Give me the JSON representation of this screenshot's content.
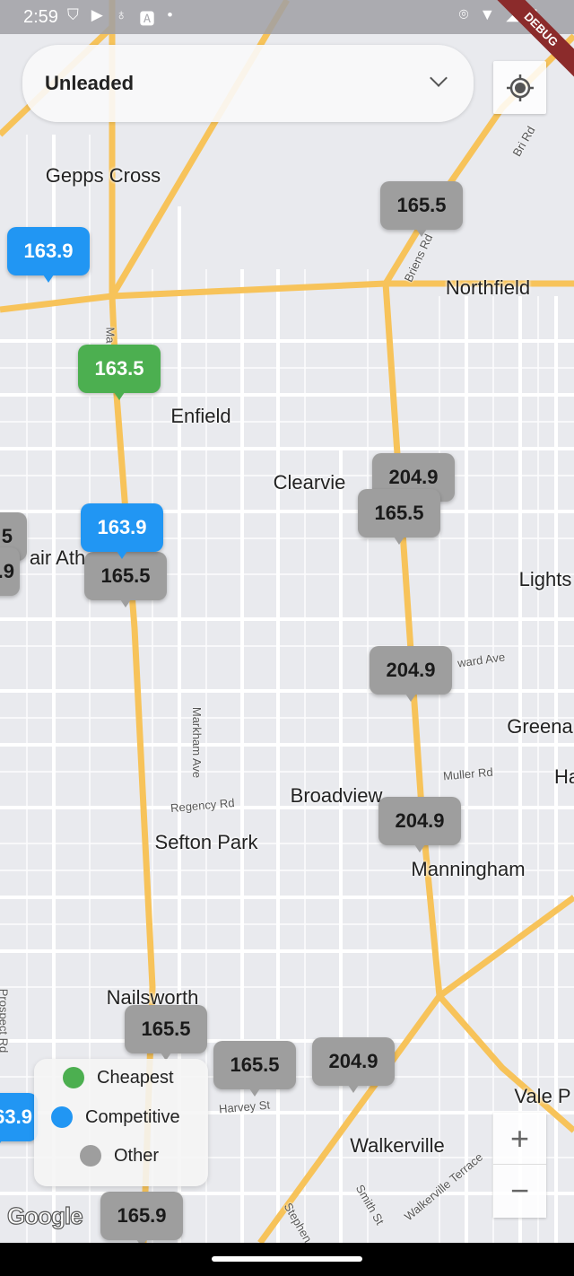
{
  "status_bar": {
    "time": "2:59",
    "left_icons": [
      "shield-icon",
      "play-shield-icon",
      "accessibility-icon",
      "font-icon",
      "dot-icon"
    ],
    "right_icons": [
      "location-icon",
      "wifi-icon",
      "signal-icon",
      "battery-icon"
    ]
  },
  "debug_banner": "DEBUG",
  "fuel_select": {
    "value": "Unleaded"
  },
  "places": [
    {
      "name": "Gepps Cross"
    },
    {
      "name": "Northfield"
    },
    {
      "name": "Enfield"
    },
    {
      "name": "Clearvie"
    },
    {
      "name": "air Ath"
    },
    {
      "name": "Lights"
    },
    {
      "name": "Greena"
    },
    {
      "name": "Ha"
    },
    {
      "name": "Broadview"
    },
    {
      "name": "Sefton Park"
    },
    {
      "name": "Manningham"
    },
    {
      "name": "Nailsworth"
    },
    {
      "name": "Vale P"
    },
    {
      "name": "Walkerville"
    }
  ],
  "streets": [
    {
      "name": "Briens Rd"
    },
    {
      "name": "Bri Rd"
    },
    {
      "name": "Ma"
    },
    {
      "name": "ward Ave"
    },
    {
      "name": "Markham Ave"
    },
    {
      "name": "Muller Rd"
    },
    {
      "name": "Regency Rd"
    },
    {
      "name": "Prospect Rd"
    },
    {
      "name": "Harvey St"
    },
    {
      "name": "Smith St"
    },
    {
      "name": "Walkerville Terrace"
    },
    {
      "name": "Stephen"
    }
  ],
  "markers": [
    {
      "price": "165.5",
      "category": "other"
    },
    {
      "price": "163.9",
      "category": "competitive"
    },
    {
      "price": "163.5",
      "category": "cheapest"
    },
    {
      "price": "204.9",
      "category": "other"
    },
    {
      "price": "165.5",
      "category": "other"
    },
    {
      "price": "5",
      "category": "other"
    },
    {
      "price": ".9",
      "category": "other"
    },
    {
      "price": "163.9",
      "category": "competitive"
    },
    {
      "price": "165.5",
      "category": "other"
    },
    {
      "price": "204.9",
      "category": "other"
    },
    {
      "price": "204.9",
      "category": "other"
    },
    {
      "price": "165.5",
      "category": "other"
    },
    {
      "price": "165.5",
      "category": "other"
    },
    {
      "price": "204.9",
      "category": "other"
    },
    {
      "price": "63.9",
      "category": "competitive"
    },
    {
      "price": "165.9",
      "category": "other"
    }
  ],
  "legend": {
    "items": [
      {
        "label": "Cheapest",
        "color": "#4caf50"
      },
      {
        "label": "Competitive",
        "color": "#2196f3"
      },
      {
        "label": "Other",
        "color": "#9e9e9e"
      }
    ]
  },
  "zoom_controls": {
    "in": "+",
    "out": "−"
  },
  "map_attribution": "Google"
}
